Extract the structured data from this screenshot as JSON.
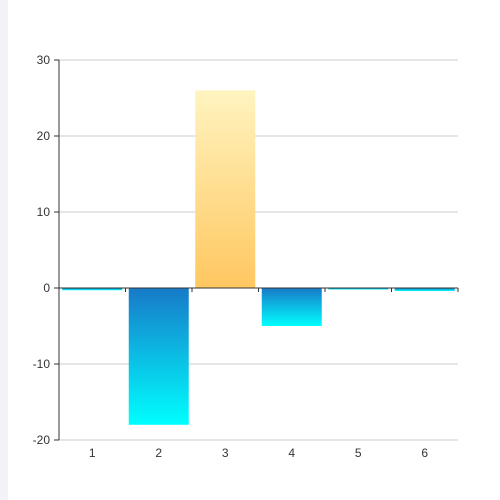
{
  "chart_data": {
    "type": "bar",
    "categories": [
      "1",
      "2",
      "3",
      "4",
      "5",
      "6"
    ],
    "values": [
      -0.3,
      -18,
      26,
      -5,
      -0.1,
      -0.4
    ],
    "ylim": [
      -20,
      30
    ],
    "yticks": [
      30,
      20,
      10,
      0,
      -10,
      -20
    ],
    "grid": true,
    "title": "",
    "xlabel": "",
    "ylabel": "",
    "colors": {
      "positive_top": "#fff4c0",
      "positive_bottom": "#ffc760",
      "negative_top": "#177ac8",
      "negative_bottom": "#00ffff",
      "grid": "#cccccc",
      "axis": "#333333"
    }
  }
}
